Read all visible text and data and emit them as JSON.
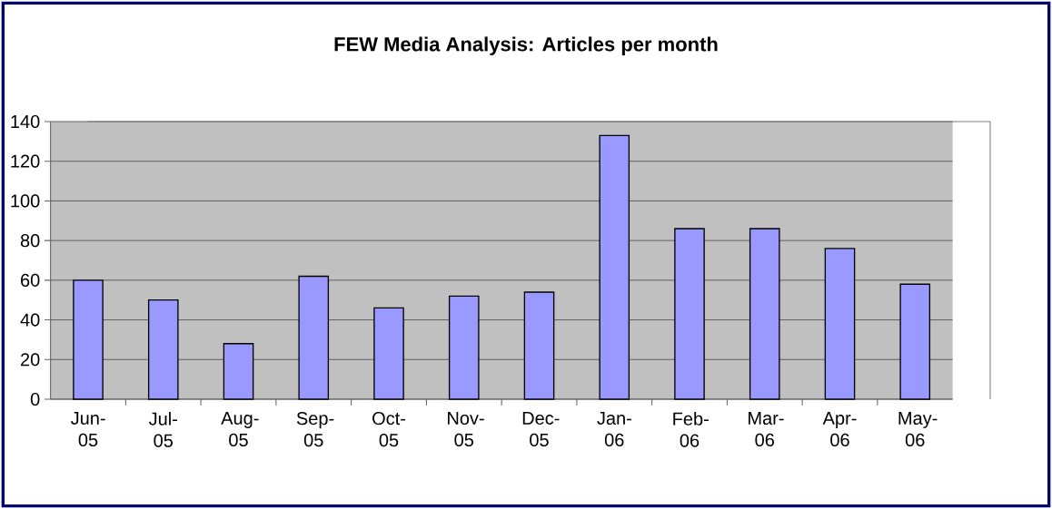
{
  "chart_data": {
    "type": "bar",
    "title": "FEW Media Analysis: Articles per month",
    "categories": [
      "Jun-05",
      "Jul-05",
      "Aug-05",
      "Sep-05",
      "Oct-05",
      "Nov-05",
      "Dec-05",
      "Jan-06",
      "Feb-06",
      "Mar-06",
      "Apr-06",
      "May-06"
    ],
    "values": [
      60,
      50,
      28,
      62,
      46,
      52,
      54,
      133,
      86,
      86,
      76,
      58
    ],
    "color": "#9999ff",
    "ylim": [
      0,
      140
    ],
    "yticks": [
      0,
      20,
      40,
      60,
      80,
      100,
      120,
      140
    ],
    "grid": "y"
  }
}
